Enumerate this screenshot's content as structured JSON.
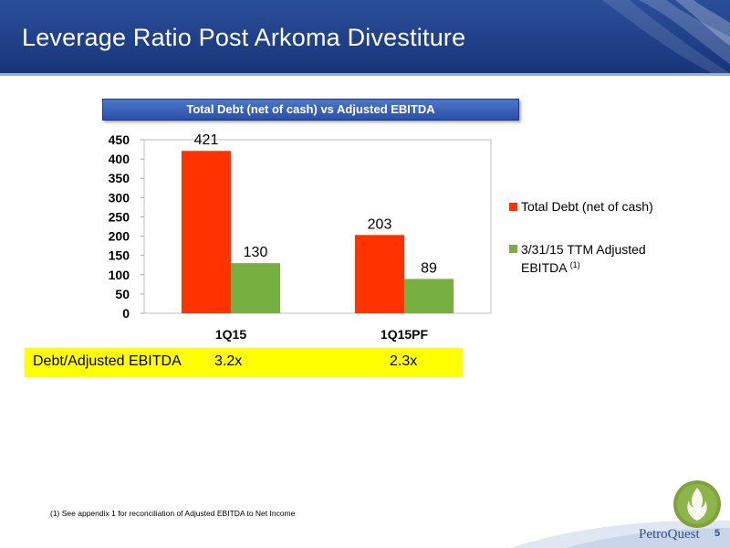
{
  "header": {
    "title": "Leverage Ratio Post Arkoma Divestiture"
  },
  "chart_data": {
    "type": "bar",
    "title": "Total Debt (net of cash) vs Adjusted EBITDA",
    "categories": [
      "1Q15",
      "1Q15PF"
    ],
    "series": [
      {
        "name": "Total Debt (net of cash)",
        "values": [
          421,
          203
        ],
        "color": "#ff3300"
      },
      {
        "name": "3/31/15 TTM Adjusted EBITDA (1)",
        "values": [
          130,
          89
        ],
        "color": "#77b041"
      }
    ],
    "ylim": [
      0,
      450
    ],
    "yticks": [
      0,
      50,
      100,
      150,
      200,
      250,
      300,
      350,
      400,
      450
    ],
    "grid": false,
    "legend": "right"
  },
  "ratio": {
    "label": "Debt/Adjusted EBITDA",
    "values": [
      "3.2x",
      "2.3x"
    ]
  },
  "footnote": "(1) See appendix 1 for reconciliation of Adjusted EBITDA to Net Income",
  "footer": {
    "brand": "PetroQuest",
    "page_number": "5"
  },
  "colors": {
    "header": "#1f3f87",
    "highlight": "#ffff00",
    "brand": "#2a4f96"
  },
  "icons": {
    "logo": "flame-logo-icon"
  }
}
